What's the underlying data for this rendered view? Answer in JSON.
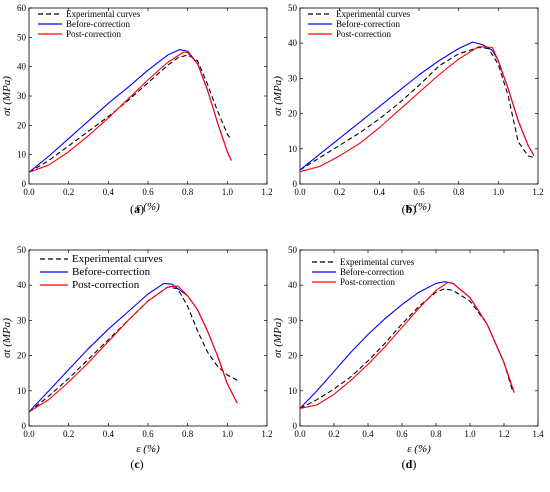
{
  "colors": {
    "experimental": "#000000",
    "before": "#0000ff",
    "post": "#ff0000"
  },
  "chart_data": [
    {
      "type": "line",
      "caption": "(a)",
      "xlabel": "ε (%)",
      "ylabel": "σt (MPa)",
      "xlim": [
        0,
        1.2
      ],
      "ylim": [
        0,
        60
      ],
      "xticks": [
        "0.0",
        "0.2",
        "0.4",
        "0.6",
        "0.8",
        "1.0",
        "1.2"
      ],
      "yticks": [
        "0",
        "10",
        "20",
        "30",
        "40",
        "50",
        "60"
      ],
      "legend_position": "top-left",
      "grid": false,
      "series": [
        {
          "name": "Experimental curves",
          "style": "dashed",
          "color": "#000000",
          "x": [
            0,
            0.1,
            0.2,
            0.3,
            0.4,
            0.5,
            0.6,
            0.7,
            0.75,
            0.8,
            0.85,
            0.9,
            0.95,
            1.0,
            1.02
          ],
          "y": [
            4,
            8,
            13,
            18,
            23,
            28.5,
            34.5,
            40.5,
            43,
            44,
            42,
            34,
            25,
            17,
            15
          ]
        },
        {
          "name": "Before-correction",
          "style": "solid",
          "color": "#0000ff",
          "x": [
            0,
            0.1,
            0.2,
            0.3,
            0.4,
            0.5,
            0.6,
            0.7,
            0.76,
            0.8,
            0.85,
            0.9,
            0.95,
            1.0,
            1.02
          ],
          "y": [
            4,
            9.5,
            15.5,
            21.5,
            27.5,
            33,
            38.8,
            44,
            45.8,
            45.3,
            41,
            32,
            21,
            11,
            8
          ]
        },
        {
          "name": "Post-correction",
          "style": "solid",
          "color": "#ff0000",
          "x": [
            0,
            0.1,
            0.2,
            0.3,
            0.4,
            0.5,
            0.6,
            0.7,
            0.78,
            0.8,
            0.85,
            0.9,
            0.95,
            1.0,
            1.02
          ],
          "y": [
            4,
            6.5,
            11,
            16.5,
            22.5,
            29,
            35.5,
            41.5,
            45,
            44.8,
            41,
            32,
            21,
            11,
            8
          ]
        }
      ]
    },
    {
      "type": "line",
      "caption": "(b)",
      "xlabel": "ε (%)",
      "ylabel": "σt (MPa)",
      "xlim": [
        0,
        1.2
      ],
      "ylim": [
        0,
        50
      ],
      "xticks": [
        "0.0",
        "0.2",
        "0.4",
        "0.6",
        "0.8",
        "1.0",
        "1.2"
      ],
      "yticks": [
        "0",
        "10",
        "20",
        "30",
        "40",
        "50"
      ],
      "legend_position": "top-left",
      "grid": false,
      "series": [
        {
          "name": "Experimental curves",
          "style": "dashed",
          "color": "#000000",
          "x": [
            0,
            0.1,
            0.2,
            0.3,
            0.4,
            0.5,
            0.6,
            0.7,
            0.8,
            0.9,
            0.95,
            1.0,
            1.05,
            1.1,
            1.15,
            1.18
          ],
          "y": [
            4,
            7.5,
            11,
            14.5,
            18.5,
            23,
            28,
            33.5,
            37,
            38.8,
            38.5,
            34,
            25,
            12,
            8,
            7.5
          ]
        },
        {
          "name": "Before-correction",
          "style": "solid",
          "color": "#0000ff",
          "x": [
            0,
            0.1,
            0.2,
            0.3,
            0.4,
            0.5,
            0.6,
            0.7,
            0.8,
            0.87,
            0.92,
            0.97,
            1.0,
            1.05,
            1.1,
            1.15,
            1.18
          ],
          "y": [
            4,
            8.5,
            13,
            17.5,
            22,
            26.5,
            31,
            35,
            38.5,
            40.3,
            39.6,
            38,
            35,
            27,
            18,
            11,
            8
          ]
        },
        {
          "name": "Post-correction",
          "style": "solid",
          "color": "#ff0000",
          "x": [
            0,
            0.1,
            0.2,
            0.3,
            0.4,
            0.5,
            0.6,
            0.7,
            0.8,
            0.9,
            0.97,
            1.0,
            1.05,
            1.1,
            1.15,
            1.18
          ],
          "y": [
            3.5,
            5,
            8,
            11.5,
            16,
            21,
            26,
            31,
            35.5,
            39,
            38.8,
            35,
            27,
            18,
            11,
            8
          ]
        }
      ]
    },
    {
      "type": "line",
      "caption": "(c)",
      "xlabel": "ε (%)",
      "ylabel": "σt (MPa)",
      "xlim": [
        0,
        1.2
      ],
      "ylim": [
        0,
        50
      ],
      "xticks": [
        "0.0",
        "0.2",
        "0.4",
        "0.6",
        "0.8",
        "1.0",
        "1.2"
      ],
      "yticks": [
        "0",
        "10",
        "20",
        "30",
        "40",
        "50"
      ],
      "legend_position": "top-left",
      "grid": false,
      "series": [
        {
          "name": "Experimental curves",
          "style": "dashed",
          "color": "#000000",
          "x": [
            0,
            0.1,
            0.2,
            0.3,
            0.4,
            0.5,
            0.6,
            0.7,
            0.75,
            0.8,
            0.85,
            0.9,
            0.95,
            1.0,
            1.05
          ],
          "y": [
            4,
            8.5,
            13.5,
            19,
            24.5,
            30,
            35.5,
            39.5,
            39,
            34,
            27,
            21,
            17,
            14.5,
            13
          ]
        },
        {
          "name": "Before-correction",
          "style": "solid",
          "color": "#0000ff",
          "x": [
            0,
            0.1,
            0.2,
            0.3,
            0.4,
            0.5,
            0.6,
            0.68,
            0.72,
            0.8,
            0.85,
            0.9,
            0.95,
            1.0,
            1.05
          ],
          "y": [
            4,
            10,
            16,
            22,
            27.5,
            32.5,
            37.5,
            40.5,
            40.3,
            37,
            33,
            27,
            20,
            12,
            6.5
          ]
        },
        {
          "name": "Post-correction",
          "style": "solid",
          "color": "#ff0000",
          "x": [
            0,
            0.1,
            0.2,
            0.3,
            0.4,
            0.5,
            0.6,
            0.7,
            0.75,
            0.8,
            0.85,
            0.9,
            0.95,
            1.0,
            1.05
          ],
          "y": [
            4,
            7.5,
            12.5,
            18,
            24,
            30,
            35.5,
            39.5,
            39.8,
            37,
            33,
            27,
            20,
            12,
            6.5
          ]
        }
      ]
    },
    {
      "type": "line",
      "caption": "(d)",
      "xlabel": "ε (%)",
      "ylabel": "σt (MPa)",
      "xlim": [
        0,
        1.4
      ],
      "ylim": [
        0,
        50
      ],
      "xticks": [
        "0.0",
        "0.2",
        "0.4",
        "0.6",
        "0.8",
        "1.0",
        "1.2",
        "1.4"
      ],
      "yticks": [
        "0",
        "10",
        "20",
        "30",
        "40",
        "50"
      ],
      "legend_position": "top-left",
      "grid": false,
      "series": [
        {
          "name": "Experimental curves",
          "style": "dashed",
          "color": "#000000",
          "x": [
            0,
            0.1,
            0.2,
            0.3,
            0.4,
            0.5,
            0.6,
            0.7,
            0.8,
            0.85,
            0.9,
            1.0,
            1.1,
            1.2,
            1.25
          ],
          "y": [
            5,
            7.5,
            10.5,
            14,
            18.5,
            23.5,
            29,
            34,
            38,
            39,
            38.5,
            35.5,
            29,
            18,
            10
          ]
        },
        {
          "name": "Before-correction",
          "style": "solid",
          "color": "#0000ff",
          "x": [
            0,
            0.1,
            0.2,
            0.3,
            0.4,
            0.5,
            0.6,
            0.7,
            0.8,
            0.85,
            0.9,
            1.0,
            1.1,
            1.2,
            1.26
          ],
          "y": [
            5,
            10,
            15.5,
            21,
            26,
            30.5,
            34.5,
            38,
            40.5,
            41,
            40.5,
            36.5,
            29,
            18,
            9.5
          ]
        },
        {
          "name": "Post-correction",
          "style": "solid",
          "color": "#ff0000",
          "x": [
            0,
            0.1,
            0.2,
            0.3,
            0.4,
            0.5,
            0.6,
            0.7,
            0.8,
            0.87,
            0.9,
            1.0,
            1.1,
            1.2,
            1.26
          ],
          "y": [
            5,
            6,
            9,
            13,
            17.5,
            22.5,
            28,
            33.5,
            38.5,
            40.8,
            40.5,
            36.5,
            29,
            18,
            9.5
          ]
        }
      ]
    }
  ]
}
